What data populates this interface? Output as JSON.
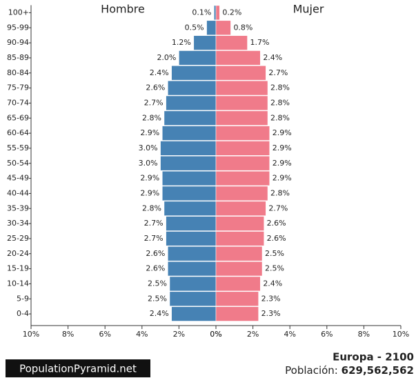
{
  "chart_data": {
    "type": "pyramid",
    "categories": [
      "100+",
      "95-99",
      "90-94",
      "85-89",
      "80-84",
      "75-79",
      "70-74",
      "65-69",
      "60-64",
      "55-59",
      "50-54",
      "45-49",
      "40-44",
      "35-39",
      "30-34",
      "25-29",
      "20-24",
      "15-19",
      "10-14",
      "5-9",
      "0-4"
    ],
    "series": [
      {
        "name": "Hombre",
        "color": "#4682b4",
        "values": [
          0.1,
          0.5,
          1.2,
          2.0,
          2.4,
          2.6,
          2.7,
          2.8,
          2.9,
          3.0,
          3.0,
          2.9,
          2.9,
          2.8,
          2.7,
          2.7,
          2.6,
          2.6,
          2.5,
          2.5,
          2.4
        ],
        "value_labels": [
          "0.1%",
          "0.5%",
          "1.2%",
          "2.0%",
          "2.4%",
          "2.6%",
          "2.7%",
          "2.8%",
          "2.9%",
          "3.0%",
          "3.0%",
          "2.9%",
          "2.9%",
          "2.8%",
          "2.7%",
          "2.7%",
          "2.6%",
          "2.6%",
          "2.5%",
          "2.5%",
          "2.4%"
        ]
      },
      {
        "name": "Mujer",
        "color": "#f07b8a",
        "values": [
          0.2,
          0.8,
          1.7,
          2.4,
          2.7,
          2.8,
          2.8,
          2.8,
          2.9,
          2.9,
          2.9,
          2.9,
          2.8,
          2.7,
          2.6,
          2.6,
          2.5,
          2.5,
          2.4,
          2.3,
          2.3
        ],
        "value_labels": [
          "0.2%",
          "0.8%",
          "1.7%",
          "2.4%",
          "2.7%",
          "2.8%",
          "2.8%",
          "2.8%",
          "2.9%",
          "2.9%",
          "2.9%",
          "2.9%",
          "2.8%",
          "2.7%",
          "2.6%",
          "2.6%",
          "2.5%",
          "2.5%",
          "2.4%",
          "2.3%",
          "2.3%"
        ]
      }
    ],
    "xlim": [
      0,
      10
    ],
    "xticks": [
      {
        "value": 0,
        "label": "0%"
      },
      {
        "value": 2,
        "label": "2%"
      },
      {
        "value": 4,
        "label": "4%"
      },
      {
        "value": 6,
        "label": "6%"
      },
      {
        "value": 8,
        "label": "8%"
      },
      {
        "value": 10,
        "label": "10%"
      }
    ]
  },
  "footer": {
    "site": "PopulationPyramid.net",
    "region": "Europa - 2100",
    "population_label": "Población:",
    "population_value": "629,562,562"
  }
}
